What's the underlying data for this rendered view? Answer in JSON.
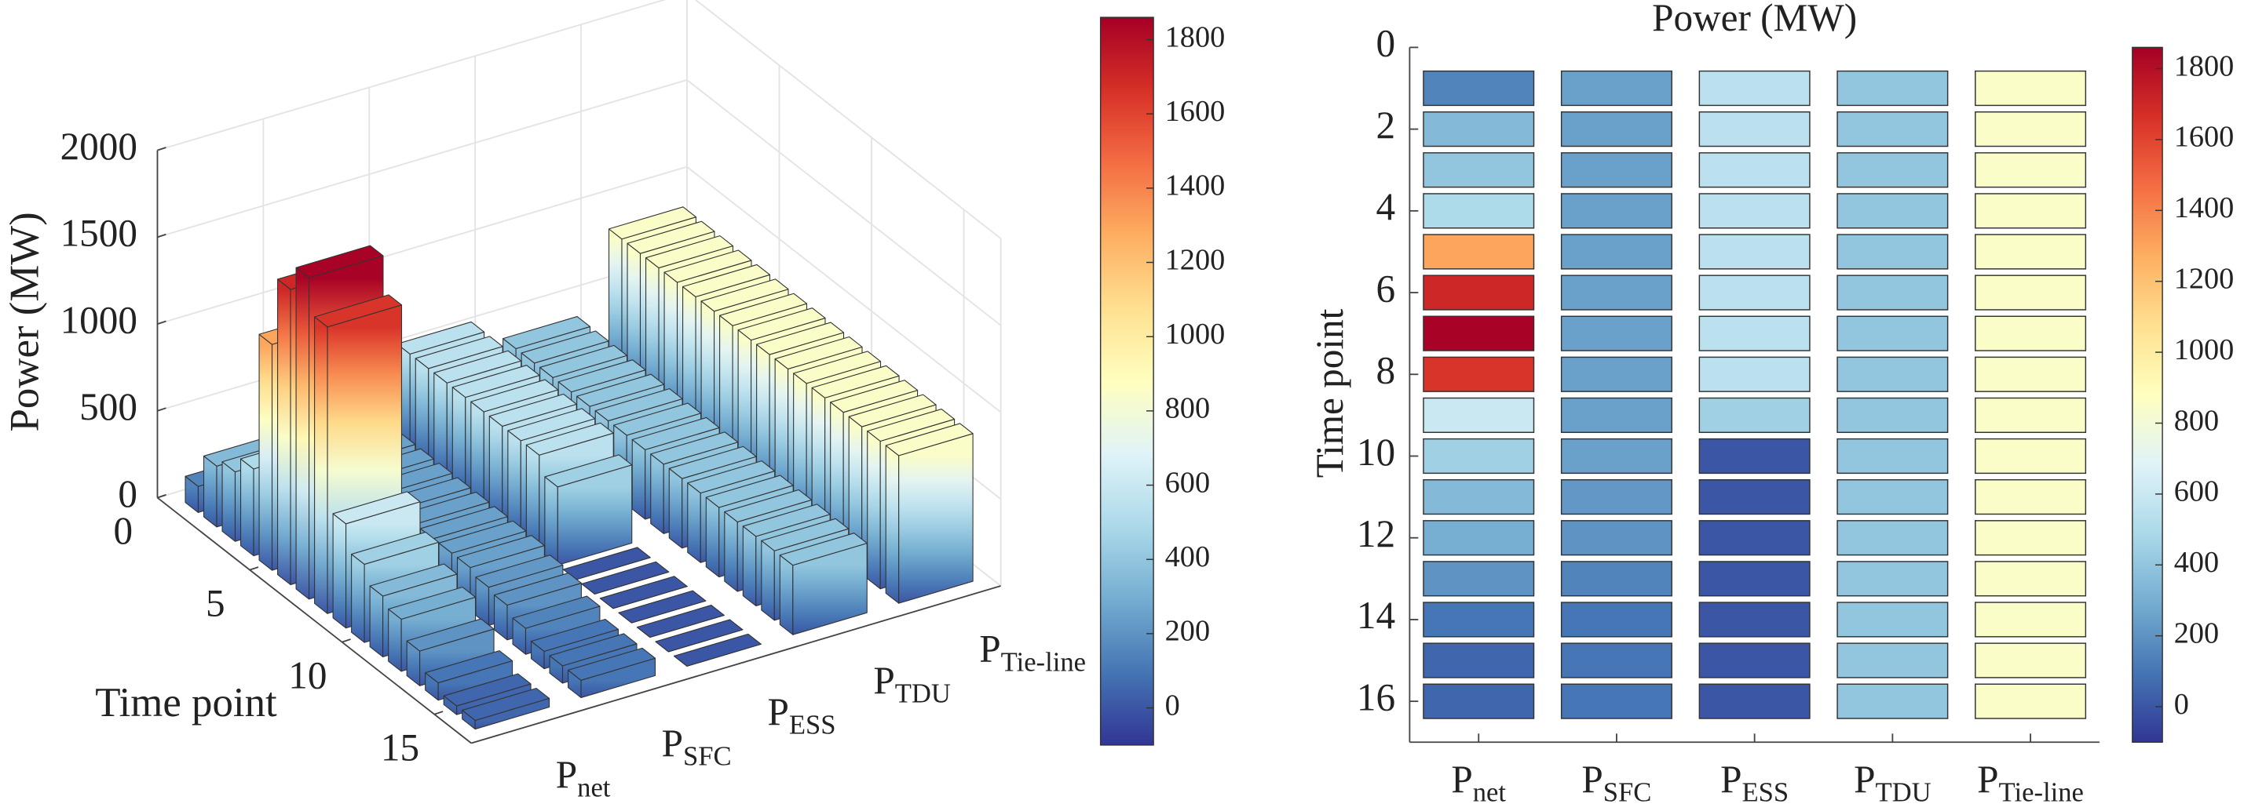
{
  "chart_data": [
    {
      "type": "bar3d",
      "xlabel": "Time point",
      "zlabel": "Power (MW)",
      "x": [
        1,
        2,
        3,
        4,
        5,
        6,
        7,
        8,
        9,
        10,
        11,
        12,
        13,
        14,
        15,
        16
      ],
      "xlim": [
        0,
        17
      ],
      "xticks": [
        0,
        5,
        10,
        15
      ],
      "zlim": [
        0,
        2000
      ],
      "zticks": [
        0,
        500,
        1000,
        1500,
        2000
      ],
      "grid": true,
      "series": [
        {
          "name": {
            "symbol": "P",
            "sub": "net"
          },
          "values": [
            150,
            350,
            400,
            500,
            1300,
            1700,
            1850,
            1650,
            600,
            450,
            350,
            300,
            200,
            100,
            50,
            50
          ]
        },
        {
          "name": {
            "symbol": "P",
            "sub": "SFC"
          },
          "values": [
            250,
            250,
            250,
            250,
            250,
            250,
            250,
            250,
            250,
            250,
            220,
            200,
            150,
            100,
            100,
            100
          ]
        },
        {
          "name": {
            "symbol": "P",
            "sub": "ESS"
          },
          "values": [
            550,
            550,
            550,
            550,
            550,
            550,
            550,
            550,
            450,
            0,
            0,
            0,
            0,
            0,
            0,
            0
          ]
        },
        {
          "name": {
            "symbol": "P",
            "sub": "TDU"
          },
          "values": [
            400,
            400,
            400,
            400,
            400,
            400,
            400,
            400,
            400,
            400,
            400,
            400,
            400,
            400,
            400,
            400
          ]
        },
        {
          "name": {
            "symbol": "P",
            "sub": "Tie-line"
          },
          "values": [
            850,
            850,
            850,
            850,
            850,
            850,
            850,
            850,
            850,
            850,
            850,
            850,
            850,
            850,
            850,
            850
          ]
        }
      ],
      "colorbar": {
        "lim": [
          -100,
          1860
        ],
        "ticks": [
          0,
          200,
          400,
          600,
          800,
          1000,
          1200,
          1400,
          1600,
          1800
        ]
      },
      "colormap": [
        "#313695",
        "#4575b4",
        "#74add1",
        "#abd9e9",
        "#e0f3f8",
        "#ffffbf",
        "#fee090",
        "#fdae61",
        "#f46d43",
        "#d73027",
        "#a50026"
      ]
    },
    {
      "type": "heatmap",
      "title": "Power (MW)",
      "ylabel": "Time point",
      "y": [
        1,
        2,
        3,
        4,
        5,
        6,
        7,
        8,
        9,
        10,
        11,
        12,
        13,
        14,
        15,
        16
      ],
      "ylim": [
        0,
        17
      ],
      "yticks": [
        0,
        2,
        4,
        6,
        8,
        10,
        12,
        14,
        16
      ],
      "series": [
        {
          "name": {
            "symbol": "P",
            "sub": "net"
          },
          "values": [
            150,
            350,
            400,
            500,
            1300,
            1700,
            1850,
            1650,
            600,
            450,
            350,
            300,
            200,
            100,
            50,
            50
          ]
        },
        {
          "name": {
            "symbol": "P",
            "sub": "SFC"
          },
          "values": [
            250,
            250,
            250,
            250,
            250,
            250,
            250,
            250,
            250,
            250,
            220,
            200,
            150,
            100,
            100,
            100
          ]
        },
        {
          "name": {
            "symbol": "P",
            "sub": "ESS"
          },
          "values": [
            550,
            550,
            550,
            550,
            550,
            550,
            550,
            550,
            450,
            0,
            0,
            0,
            0,
            0,
            0,
            0
          ]
        },
        {
          "name": {
            "symbol": "P",
            "sub": "TDU"
          },
          "values": [
            400,
            400,
            400,
            400,
            400,
            400,
            400,
            400,
            400,
            400,
            400,
            400,
            400,
            400,
            400,
            400
          ]
        },
        {
          "name": {
            "symbol": "P",
            "sub": "Tie-line"
          },
          "values": [
            850,
            850,
            850,
            850,
            850,
            850,
            850,
            850,
            850,
            850,
            850,
            850,
            850,
            850,
            850,
            850
          ]
        }
      ],
      "colorbar": {
        "lim": [
          -100,
          1860
        ],
        "ticks": [
          0,
          200,
          400,
          600,
          800,
          1000,
          1200,
          1400,
          1600,
          1800
        ]
      },
      "colormap": [
        "#313695",
        "#4575b4",
        "#74add1",
        "#abd9e9",
        "#e0f3f8",
        "#ffffbf",
        "#fee090",
        "#fdae61",
        "#f46d43",
        "#d73027",
        "#a50026"
      ]
    }
  ]
}
